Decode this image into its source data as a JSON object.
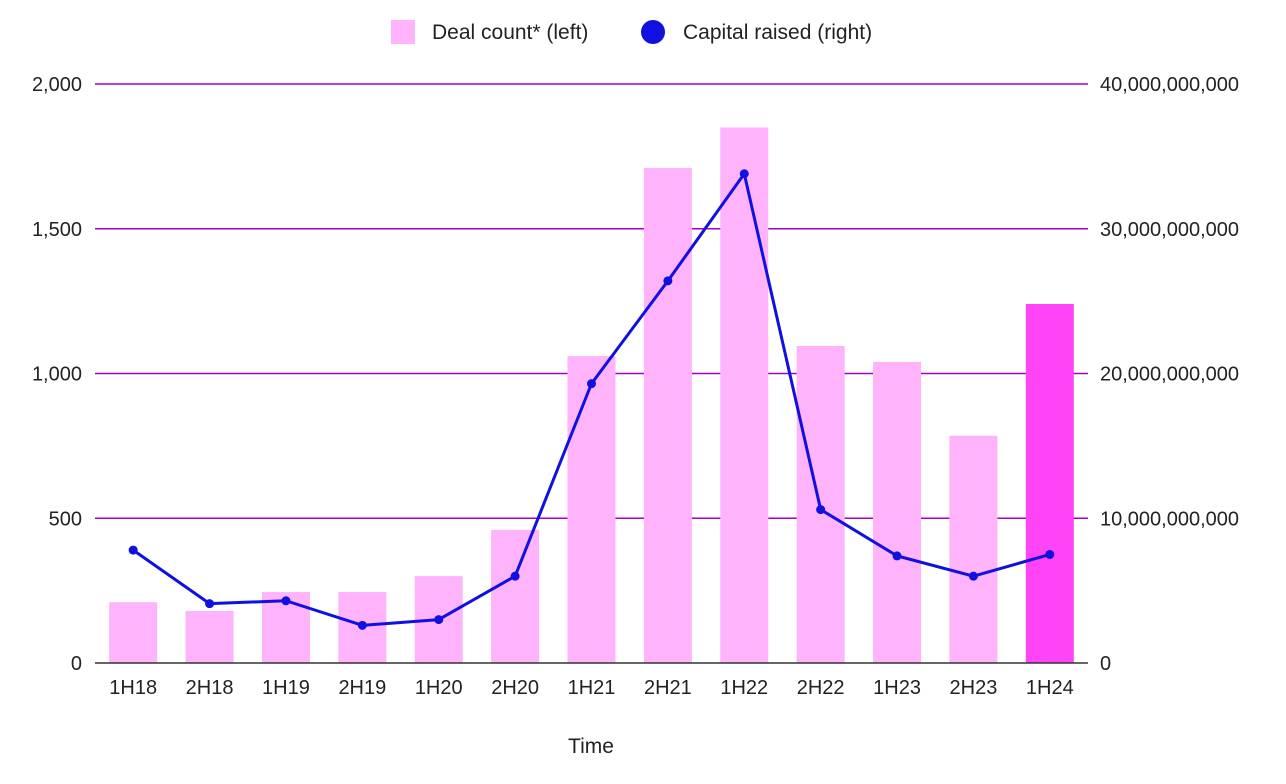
{
  "chart_data": {
    "type": "bar",
    "title": "",
    "xlabel": "Time",
    "ylabel": "",
    "ylabel_right": "",
    "categories": [
      "1H18",
      "2H18",
      "1H19",
      "2H19",
      "1H20",
      "2H20",
      "1H21",
      "2H21",
      "1H22",
      "2H22",
      "1H23",
      "2H23",
      "1H24"
    ],
    "series": [
      {
        "name": "Deal count* (left)",
        "type": "bar",
        "axis": "left",
        "values": [
          210,
          180,
          245,
          245,
          300,
          460,
          1060,
          1710,
          1850,
          1095,
          1040,
          785,
          1240
        ],
        "color": "#ffb3fb",
        "highlight_color": "#ff44f5",
        "highlight_index": 12
      },
      {
        "name": "Capital raised (right)",
        "type": "line",
        "axis": "right",
        "values": [
          7800000000,
          4100000000,
          4300000000,
          2600000000,
          3000000000,
          6000000000,
          19300000000,
          26400000000,
          33800000000,
          10600000000,
          7400000000,
          6000000000,
          7500000000
        ],
        "color": "#1010e0"
      }
    ],
    "ylim": [
      0,
      2000
    ],
    "ylim_right": [
      0,
      40000000000
    ],
    "yticks": [
      "0",
      "500",
      "1,000",
      "1,500",
      "2,000"
    ],
    "yticks_right": [
      "0",
      "10,000,000,000",
      "20,000,000,000",
      "30,000,000,000",
      "40,000,000,000"
    ],
    "grid": true,
    "grid_color": "#a000c8",
    "legend_position": "top-center"
  }
}
